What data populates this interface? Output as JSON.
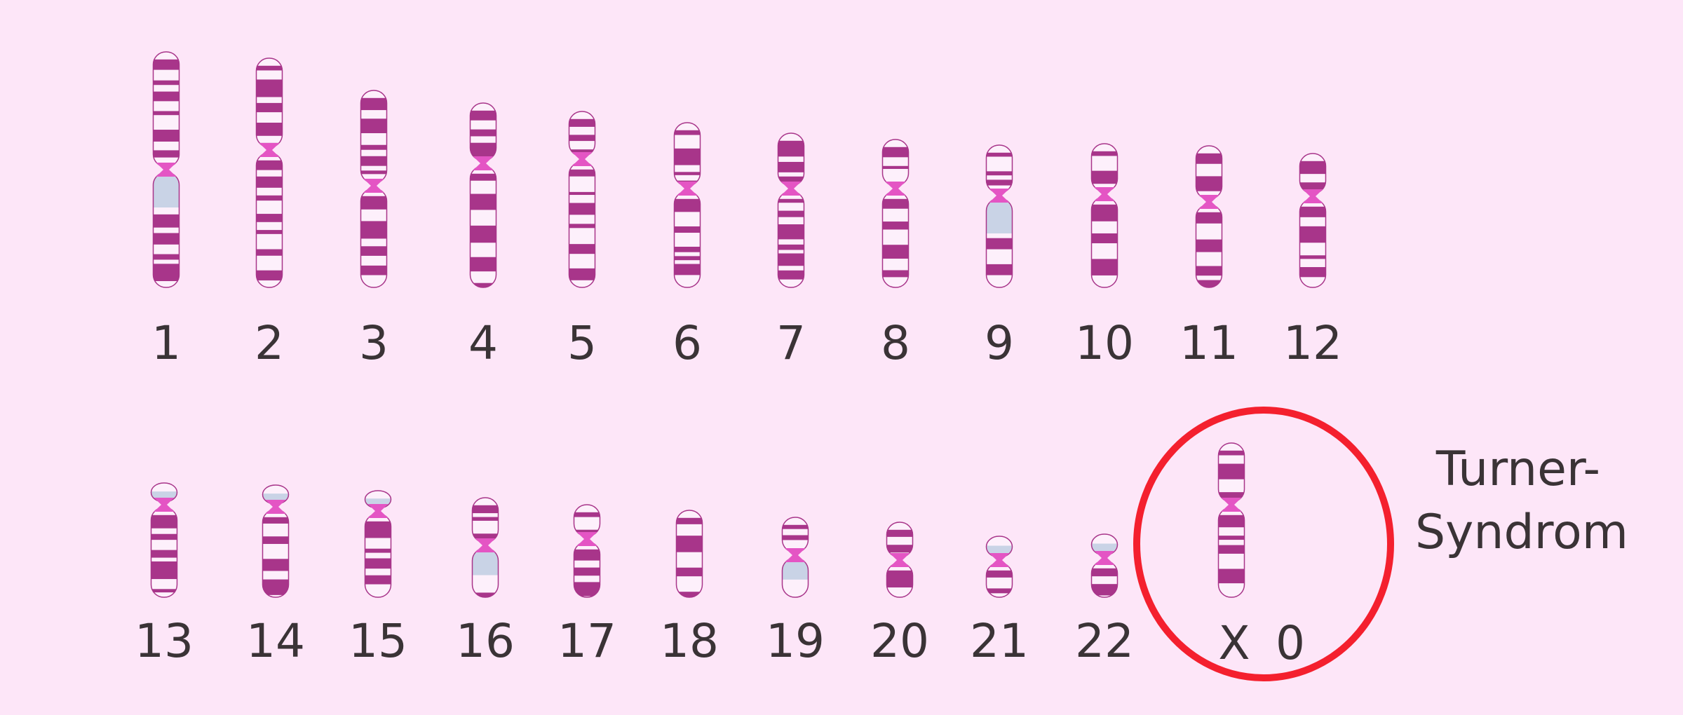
{
  "colors": {
    "background": "#fde6f8",
    "band": "#a8358a",
    "light_band": "#fdf0fb",
    "centromere": "#e455c4",
    "heterochromatin": "#c9d3e6",
    "highlight_circle": "#f4202e",
    "text": "#3a3336"
  },
  "karyotype": {
    "row1": [
      "1",
      "2",
      "3",
      "4",
      "5",
      "6",
      "7",
      "8",
      "9",
      "10",
      "11",
      "12"
    ],
    "row2": [
      "13",
      "14",
      "15",
      "16",
      "17",
      "18",
      "19",
      "20",
      "21",
      "22"
    ],
    "sex_chromosomes": {
      "x_label": "X",
      "missing_label": "0"
    }
  },
  "annotation": {
    "line1": "Turner-",
    "line2": "Syndrom"
  }
}
